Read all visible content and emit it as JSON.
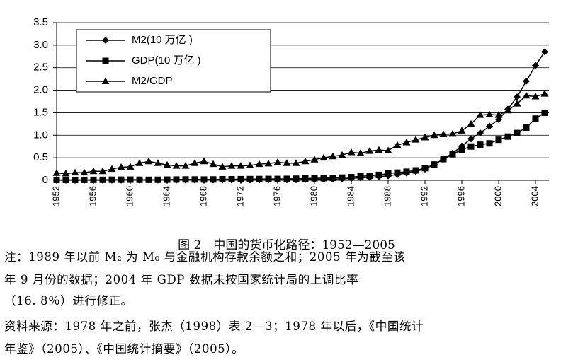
{
  "chart_data": {
    "type": "line",
    "x": [
      1952,
      1953,
      1954,
      1955,
      1956,
      1957,
      1958,
      1959,
      1960,
      1961,
      1962,
      1963,
      1964,
      1965,
      1966,
      1967,
      1968,
      1969,
      1970,
      1971,
      1972,
      1973,
      1974,
      1975,
      1976,
      1977,
      1978,
      1979,
      1980,
      1981,
      1982,
      1983,
      1984,
      1985,
      1986,
      1987,
      1988,
      1989,
      1990,
      1991,
      1992,
      1993,
      1994,
      1995,
      1996,
      1997,
      1998,
      1999,
      2000,
      2001,
      2002,
      2003,
      2004,
      2005
    ],
    "series": [
      {
        "name": "M2(10 万亿 )",
        "color": "#000000",
        "marker": "diamond",
        "values": [
          0.001,
          0.001,
          0.002,
          0.002,
          0.002,
          0.002,
          0.003,
          0.004,
          0.005,
          0.005,
          0.005,
          0.005,
          0.005,
          0.005,
          0.006,
          0.007,
          0.007,
          0.007,
          0.007,
          0.008,
          0.008,
          0.009,
          0.01,
          0.011,
          0.012,
          0.012,
          0.014,
          0.017,
          0.021,
          0.025,
          0.028,
          0.034,
          0.043,
          0.054,
          0.065,
          0.08,
          0.1,
          0.13,
          0.16,
          0.2,
          0.25,
          0.35,
          0.47,
          0.6,
          0.76,
          0.92,
          1.05,
          1.2,
          1.35,
          1.58,
          1.85,
          2.2,
          2.55,
          2.85
        ]
      },
      {
        "name": "GDP(10 万亿 )",
        "color": "#000000",
        "marker": "square",
        "values": [
          0.007,
          0.008,
          0.009,
          0.009,
          0.01,
          0.011,
          0.013,
          0.014,
          0.015,
          0.012,
          0.011,
          0.012,
          0.015,
          0.017,
          0.019,
          0.018,
          0.017,
          0.019,
          0.023,
          0.024,
          0.025,
          0.027,
          0.028,
          0.03,
          0.03,
          0.032,
          0.036,
          0.04,
          0.045,
          0.049,
          0.053,
          0.06,
          0.07,
          0.09,
          0.1,
          0.12,
          0.15,
          0.17,
          0.19,
          0.22,
          0.27,
          0.35,
          0.47,
          0.58,
          0.68,
          0.75,
          0.79,
          0.82,
          0.9,
          0.97,
          1.05,
          1.17,
          1.37,
          1.5
        ]
      },
      {
        "name": "M2/GDP",
        "color": "#000000",
        "marker": "triangle",
        "values": [
          0.16,
          0.15,
          0.17,
          0.17,
          0.2,
          0.2,
          0.25,
          0.29,
          0.3,
          0.38,
          0.42,
          0.38,
          0.34,
          0.32,
          0.32,
          0.38,
          0.42,
          0.36,
          0.3,
          0.32,
          0.32,
          0.33,
          0.36,
          0.37,
          0.4,
          0.38,
          0.38,
          0.42,
          0.46,
          0.5,
          0.53,
          0.56,
          0.62,
          0.6,
          0.65,
          0.67,
          0.66,
          0.78,
          0.84,
          0.9,
          0.95,
          1.0,
          1.02,
          1.03,
          1.1,
          1.25,
          1.45,
          1.46,
          1.45,
          1.55,
          1.7,
          1.88,
          1.86,
          1.92
        ]
      }
    ],
    "xlim": [
      1952,
      2005
    ],
    "xticks": [
      1952,
      1956,
      1960,
      1964,
      1968,
      1972,
      1976,
      1980,
      1984,
      1988,
      1992,
      1996,
      2000,
      2004
    ],
    "ylim": [
      0,
      3.5
    ],
    "yticks": [
      0,
      0.5,
      {
        "value": 1,
        "label": "1.0"
      },
      1.5,
      {
        "value": 2,
        "label": "2.0"
      },
      2.5,
      {
        "value": 3,
        "label": "3.0"
      },
      3.5
    ],
    "grid": true,
    "legend": "upper left"
  },
  "caption": "图 2　中国的货币化路径：1952—2005",
  "notes": [
    "注：1989 年以前 M₂ 为 M₀ 与金融机构存款余额之和；2005 年为截至该",
    "年 9 月份的数据；2004 年 GDP 数据未按国家统计局的上调比率",
    "（16. 8％）进行修正。",
    "资料来源：1978 年之前，张杰（1998）表 2—3；1978 年以后，《中国统计",
    "年鉴》（2005）、《中国统计摘要》（2005）。"
  ]
}
